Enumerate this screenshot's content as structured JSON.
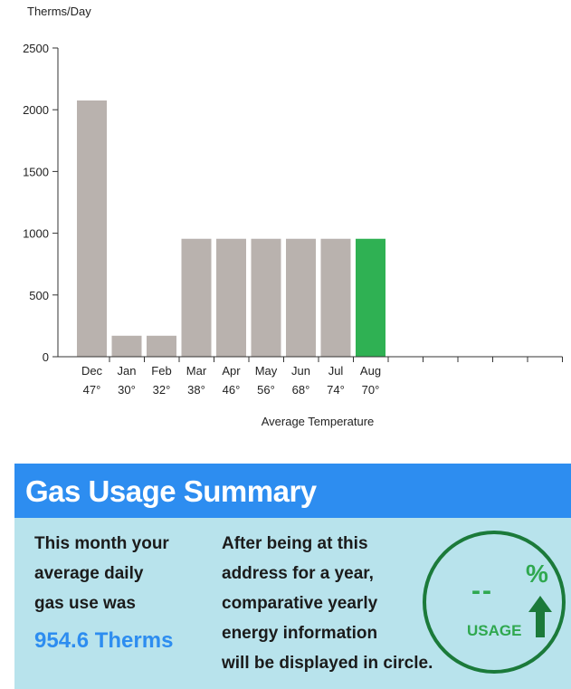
{
  "chart_data": {
    "type": "bar",
    "ylabel": "Therms/Day",
    "xlabel": "Average Temperature",
    "ylim": [
      0,
      2500
    ],
    "yticks": [
      0,
      500,
      1000,
      1500,
      2000,
      2500
    ],
    "categories": [
      "Dec",
      "Jan",
      "Feb",
      "Mar",
      "Apr",
      "May",
      "Jun",
      "Jul",
      "Aug"
    ],
    "temperatures": [
      "47°",
      "30°",
      "32°",
      "38°",
      "46°",
      "56°",
      "68°",
      "74°",
      "70°"
    ],
    "values": [
      2075,
      170,
      170,
      955,
      955,
      955,
      955,
      955,
      955
    ],
    "highlight_index": 8,
    "empty_slots": 5,
    "colors": {
      "bar": "#b9b2ae",
      "highlight": "#2fb153",
      "axis": "#333333"
    }
  },
  "summary": {
    "title": "Gas Usage Summary",
    "left_lines": [
      "This month your",
      "average daily",
      "gas use was"
    ],
    "therms": "954.6 Therms",
    "mid_lines": [
      "After being at this",
      "address for a year,",
      "comparative yearly",
      "energy information",
      "will be displayed in circle."
    ],
    "circle": {
      "dash": "--",
      "percent": "%",
      "label": "USAGE",
      "icon": "up-arrow-icon"
    },
    "colors": {
      "header": "#2d8df0",
      "body": "#b8e3ec",
      "accent": "#2fa84f",
      "ring": "#1b7a3a"
    }
  }
}
